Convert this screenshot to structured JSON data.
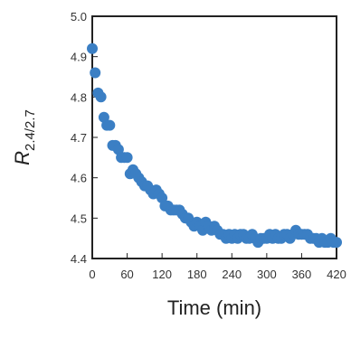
{
  "chart_data": {
    "type": "scatter",
    "title": "",
    "xlabel": "Time (min)",
    "ylabel": {
      "main": "R",
      "subscript": "2.4/2.7"
    },
    "xlim": [
      0,
      420
    ],
    "ylim": [
      4.4,
      5.0
    ],
    "x_ticks": [
      0,
      60,
      120,
      180,
      240,
      300,
      360,
      420
    ],
    "y_ticks": [
      4.4,
      4.5,
      4.6,
      4.7,
      4.8,
      4.9,
      5.0
    ],
    "y_tick_labels": [
      "4.4",
      "4.5",
      "4.6",
      "4.7",
      "4.8",
      "4.9",
      "5.0"
    ],
    "grid": false,
    "marker_color": "#3b7fc4",
    "series": [
      {
        "points": [
          [
            0,
            4.92
          ],
          [
            5,
            4.86
          ],
          [
            10,
            4.81
          ],
          [
            15,
            4.8
          ],
          [
            20,
            4.75
          ],
          [
            25,
            4.73
          ],
          [
            30,
            4.73
          ],
          [
            35,
            4.68
          ],
          [
            40,
            4.68
          ],
          [
            45,
            4.67
          ],
          [
            50,
            4.65
          ],
          [
            55,
            4.65
          ],
          [
            60,
            4.65
          ],
          [
            65,
            4.61
          ],
          [
            70,
            4.62
          ],
          [
            75,
            4.61
          ],
          [
            80,
            4.6
          ],
          [
            85,
            4.59
          ],
          [
            90,
            4.58
          ],
          [
            95,
            4.58
          ],
          [
            100,
            4.57
          ],
          [
            105,
            4.56
          ],
          [
            110,
            4.57
          ],
          [
            115,
            4.56
          ],
          [
            120,
            4.55
          ],
          [
            125,
            4.53
          ],
          [
            130,
            4.53
          ],
          [
            135,
            4.52
          ],
          [
            140,
            4.52
          ],
          [
            145,
            4.52
          ],
          [
            150,
            4.52
          ],
          [
            155,
            4.51
          ],
          [
            160,
            4.5
          ],
          [
            165,
            4.5
          ],
          [
            170,
            4.49
          ],
          [
            175,
            4.48
          ],
          [
            180,
            4.49
          ],
          [
            185,
            4.48
          ],
          [
            190,
            4.47
          ],
          [
            195,
            4.49
          ],
          [
            200,
            4.48
          ],
          [
            205,
            4.47
          ],
          [
            210,
            4.48
          ],
          [
            215,
            4.47
          ],
          [
            220,
            4.46
          ],
          [
            225,
            4.46
          ],
          [
            230,
            4.45
          ],
          [
            235,
            4.46
          ],
          [
            240,
            4.45
          ],
          [
            245,
            4.46
          ],
          [
            250,
            4.45
          ],
          [
            255,
            4.46
          ],
          [
            260,
            4.46
          ],
          [
            265,
            4.45
          ],
          [
            270,
            4.45
          ],
          [
            275,
            4.46
          ],
          [
            280,
            4.45
          ],
          [
            285,
            4.44
          ],
          [
            290,
            4.45
          ],
          [
            295,
            4.45
          ],
          [
            300,
            4.45
          ],
          [
            305,
            4.46
          ],
          [
            310,
            4.45
          ],
          [
            315,
            4.46
          ],
          [
            320,
            4.45
          ],
          [
            325,
            4.45
          ],
          [
            330,
            4.46
          ],
          [
            335,
            4.46
          ],
          [
            340,
            4.45
          ],
          [
            345,
            4.46
          ],
          [
            350,
            4.47
          ],
          [
            355,
            4.46
          ],
          [
            360,
            4.46
          ],
          [
            365,
            4.46
          ],
          [
            370,
            4.46
          ],
          [
            375,
            4.45
          ],
          [
            380,
            4.45
          ],
          [
            385,
            4.45
          ],
          [
            390,
            4.44
          ],
          [
            395,
            4.45
          ],
          [
            400,
            4.44
          ],
          [
            405,
            4.44
          ],
          [
            410,
            4.45
          ],
          [
            415,
            4.44
          ],
          [
            420,
            4.44
          ]
        ]
      }
    ]
  }
}
